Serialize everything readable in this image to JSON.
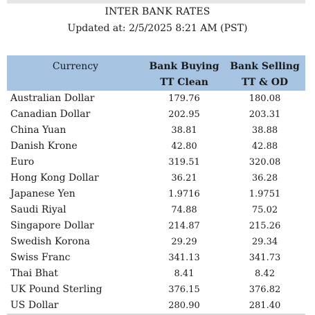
{
  "header": {
    "title": "INTER BANK RATES",
    "updated": "Updated at: 2/5/2025 8:21 AM (PST)"
  },
  "table": {
    "columns": {
      "currency": "Currency",
      "buying_line1": "Bank Buying",
      "buying_line2": "TT Clean",
      "selling_line1": "Bank Selling",
      "selling_line2": "TT & OD"
    },
    "rows": [
      {
        "currency": "Australian Dollar",
        "buying": "179.76",
        "selling": "180.08"
      },
      {
        "currency": "Canadian Dollar",
        "buying": "202.95",
        "selling": "203.31"
      },
      {
        "currency": "China Yuan",
        "buying": "38.81",
        "selling": "38.88"
      },
      {
        "currency": "Danish Krone",
        "buying": "42.80",
        "selling": "42.88"
      },
      {
        "currency": "Euro",
        "buying": "319.51",
        "selling": "320.08"
      },
      {
        "currency": "Hong Kong Dollar",
        "buying": "36.21",
        "selling": "36.28"
      },
      {
        "currency": "Japanese Yen",
        "buying": "1.9716",
        "selling": "1.9751"
      },
      {
        "currency": "Saudi Riyal",
        "buying": "74.88",
        "selling": "75.02"
      },
      {
        "currency": "Singapore Dollar",
        "buying": "214.87",
        "selling": "215.26"
      },
      {
        "currency": "Swedish Korona",
        "buying": "29.29",
        "selling": "29.34"
      },
      {
        "currency": "Swiss Franc",
        "buying": "341.13",
        "selling": "341.73"
      },
      {
        "currency": "Thai Bhat",
        "buying": "8.41",
        "selling": "8.42"
      },
      {
        "currency": "UK Pound Sterling",
        "buying": "376.15",
        "selling": "376.82"
      },
      {
        "currency": "US Dollar",
        "buying": "280.90",
        "selling": "281.40"
      }
    ]
  },
  "colors": {
    "header_background": "#a7c3e2",
    "text": "#1a1a1a"
  }
}
